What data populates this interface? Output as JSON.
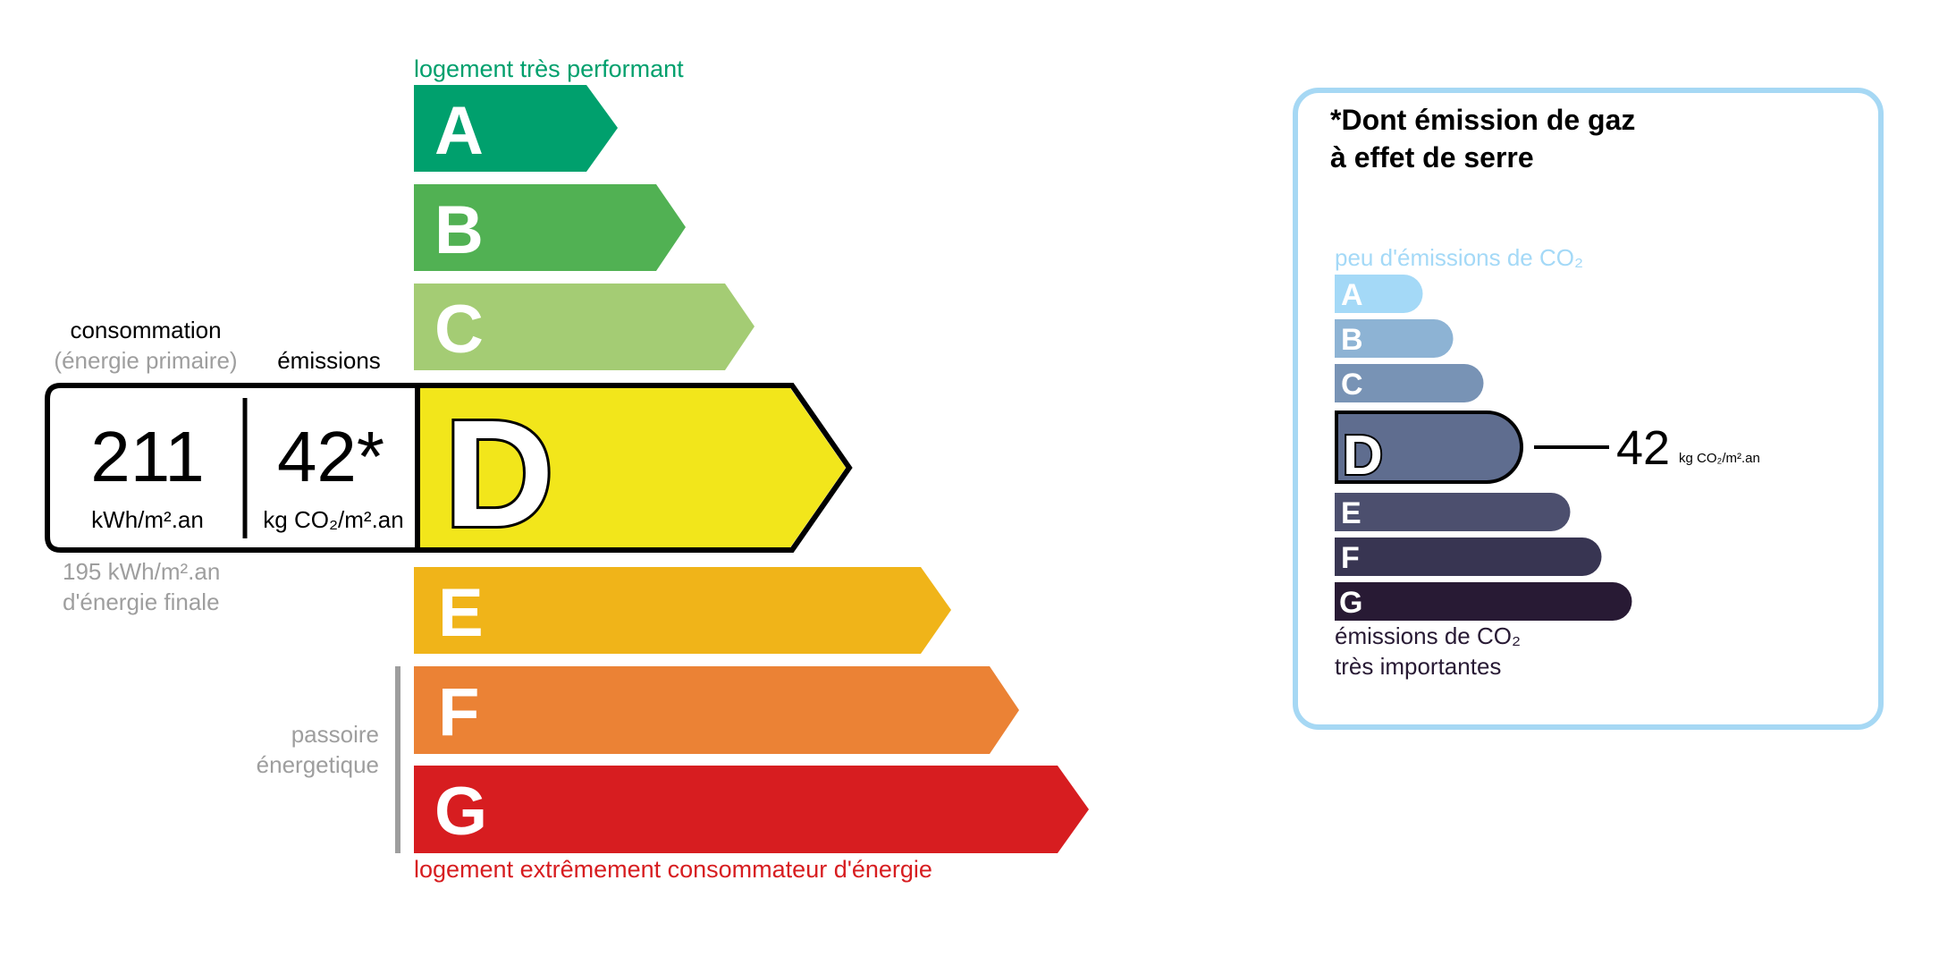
{
  "energy_label": {
    "top_caption": "logement très performant",
    "bottom_caption": "logement extrêmement consommateur d'énergie",
    "passoire_line1": "passoire",
    "passoire_line2": "énergetique",
    "classes": [
      {
        "letter": "A",
        "color": "#00a06d"
      },
      {
        "letter": "B",
        "color": "#51b153"
      },
      {
        "letter": "C",
        "color": "#a4cc74"
      },
      {
        "letter": "D",
        "color": "#f2e61b"
      },
      {
        "letter": "E",
        "color": "#f0b419"
      },
      {
        "letter": "F",
        "color": "#eb8235"
      },
      {
        "letter": "G",
        "color": "#d71d20"
      }
    ],
    "current_class": "D",
    "consumption_label": "consommation",
    "consumption_sublabel": "(énergie primaire)",
    "emissions_label": "émissions",
    "consumption_value": "211",
    "consumption_unit": "kWh/m².an",
    "emissions_value": "42*",
    "emissions_unit": "kg CO₂/m².an",
    "final_energy_value": "195 kWh/m².an",
    "final_energy_label": "d'énergie finale"
  },
  "ghg_panel": {
    "title_line1": "*Dont émission de gaz",
    "title_line2": "à effet de serre",
    "top_caption": "peu d'émissions de CO₂",
    "bottom_caption_line1": "émissions de CO₂",
    "bottom_caption_line2": "très importantes",
    "classes": [
      {
        "letter": "A",
        "color": "#a4d9f7"
      },
      {
        "letter": "B",
        "color": "#8db3d4"
      },
      {
        "letter": "C",
        "color": "#7893b5"
      },
      {
        "letter": "D",
        "color": "#5f6d8f"
      },
      {
        "letter": "E",
        "color": "#4c4f6e"
      },
      {
        "letter": "F",
        "color": "#383552"
      },
      {
        "letter": "G",
        "color": "#281a34"
      }
    ],
    "current_class": "D",
    "value": "42",
    "unit": "kg CO₂/m².an",
    "border_color": "#a6d8f4"
  }
}
